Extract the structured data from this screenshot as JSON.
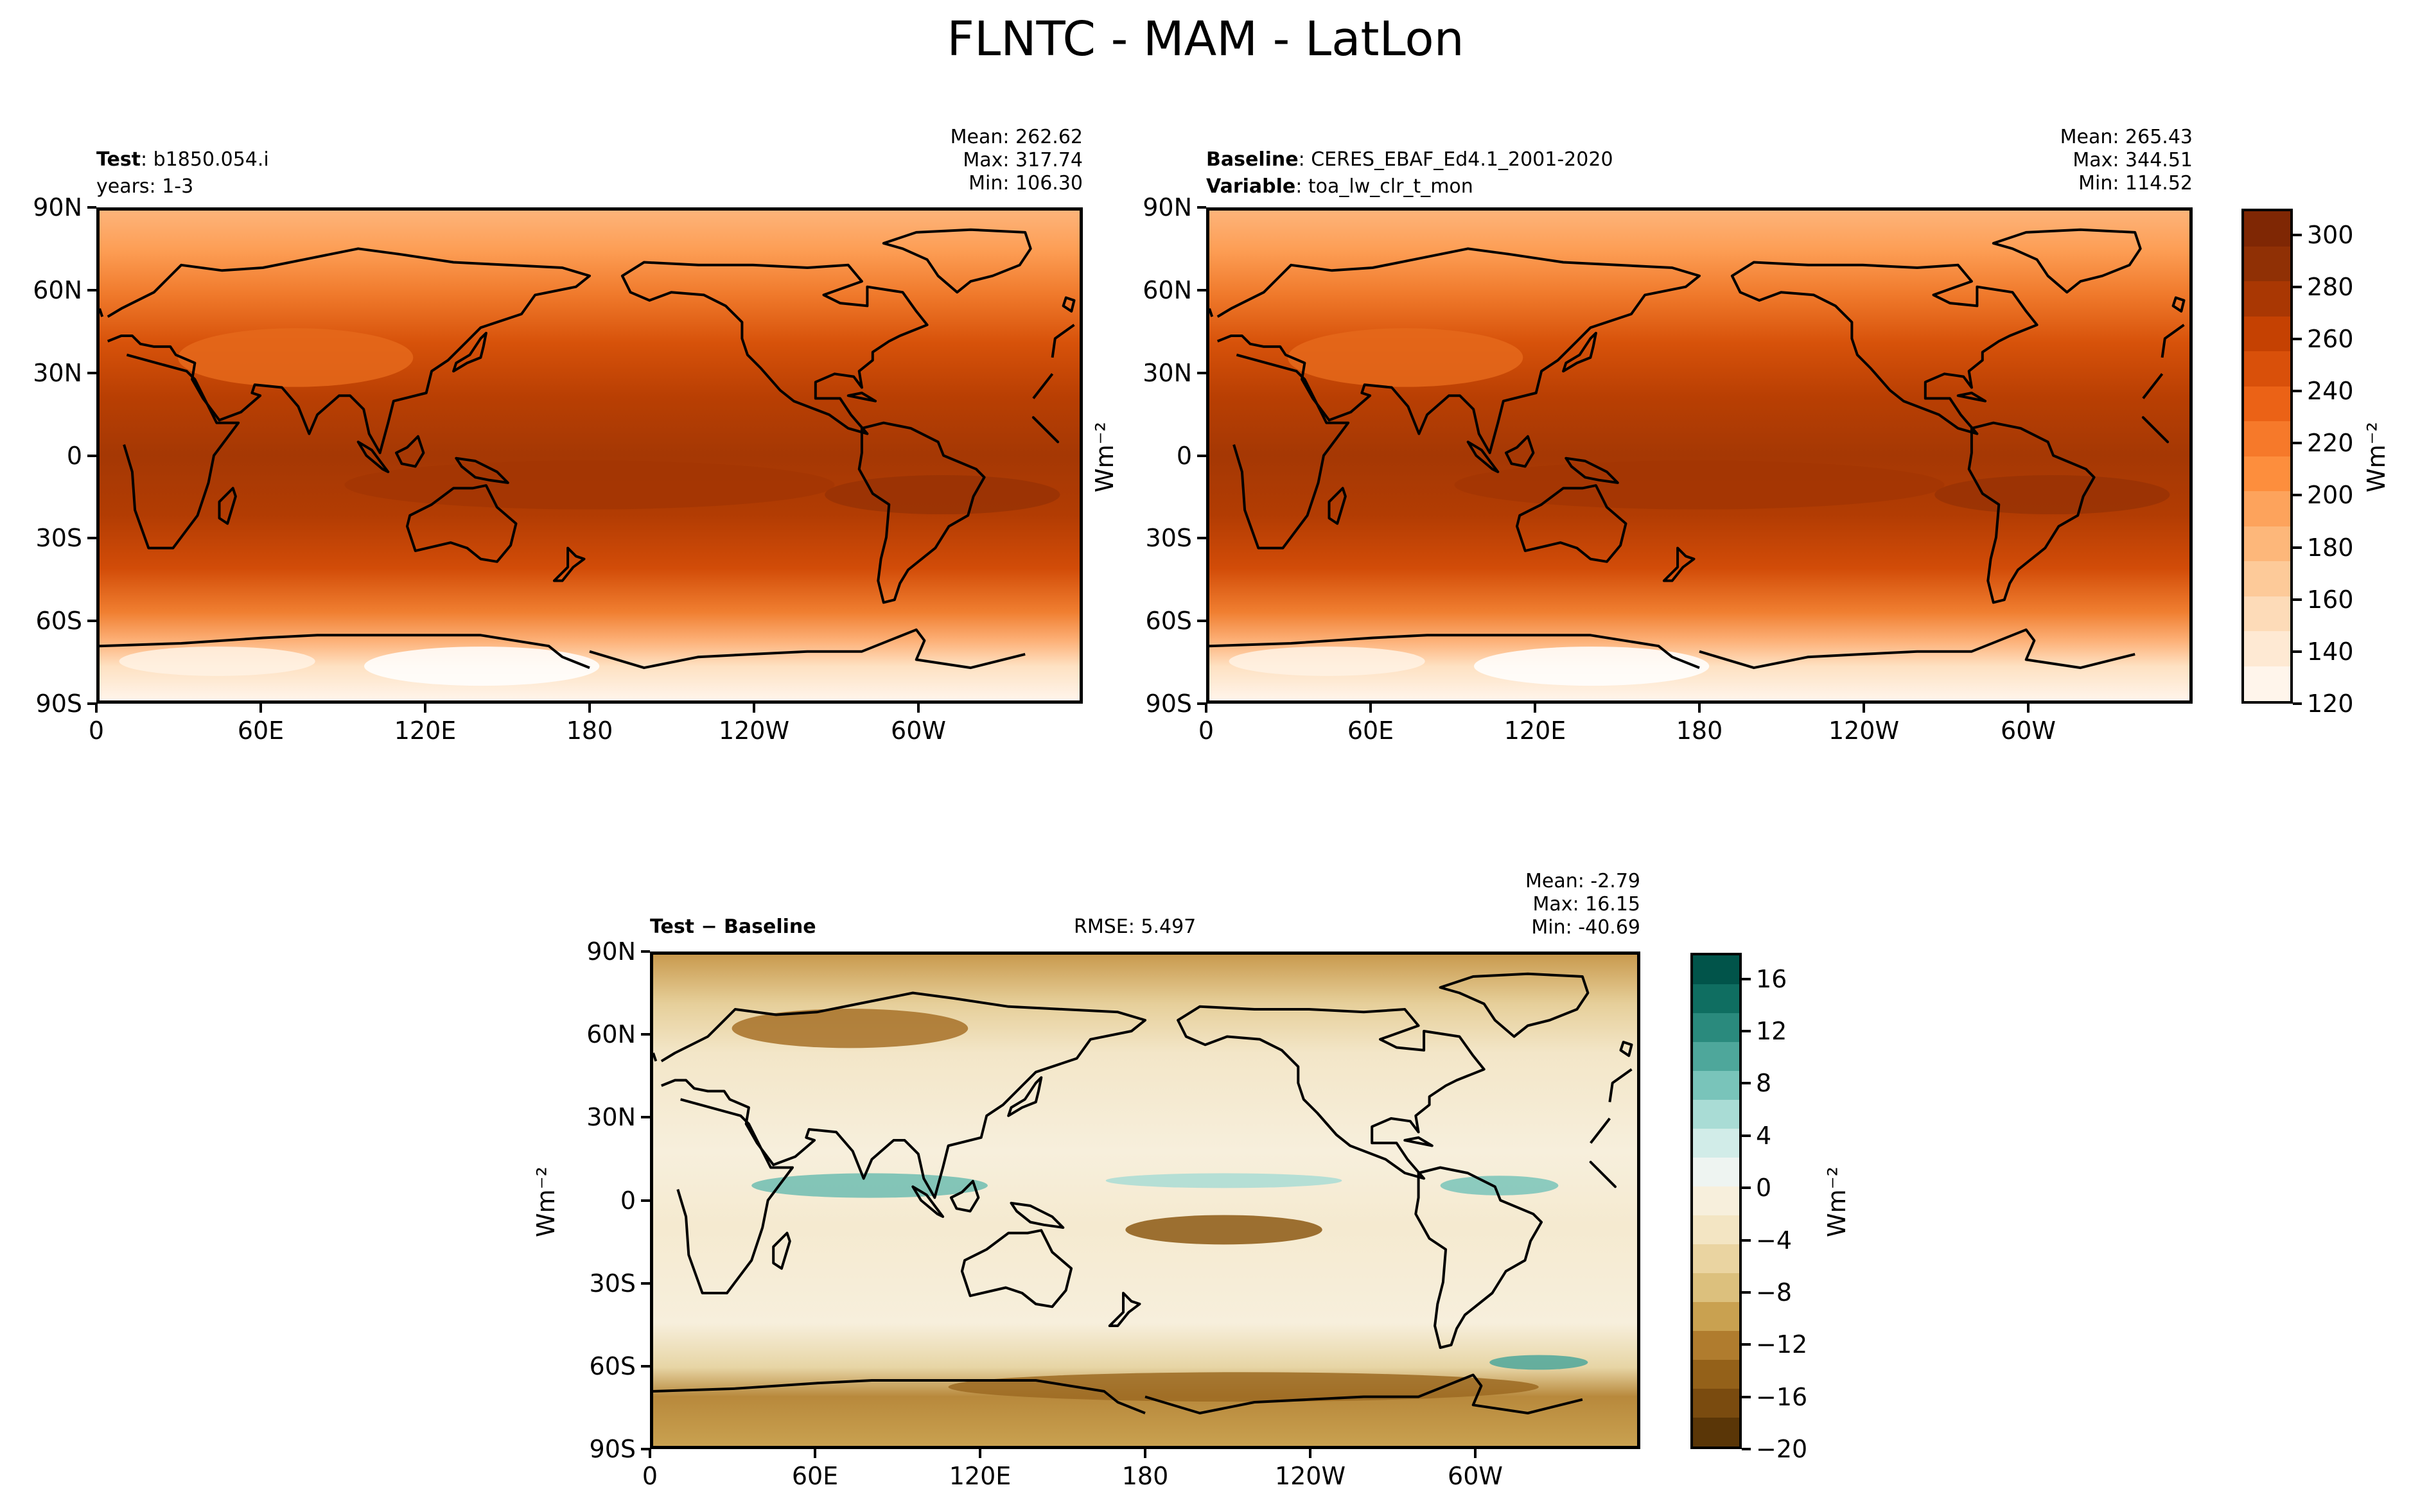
{
  "figure_title": "FLNTC - MAM - LatLon",
  "panels": [
    {
      "header_lines": [
        {
          "bold": "Test",
          "text": ": b1850.054.i"
        },
        {
          "bold": "",
          "text": "years: 1-3"
        }
      ],
      "stats": [
        "Mean: 262.62",
        "Max: 317.74",
        "Min: 106.30"
      ],
      "rmse": ""
    },
    {
      "header_lines": [
        {
          "bold": "Baseline",
          "text": ": CERES_EBAF_Ed4.1_2001-2020"
        },
        {
          "bold": "Variable",
          "text": ": toa_lw_clr_t_mon"
        }
      ],
      "stats": [
        "Mean: 265.43",
        "Max: 344.51",
        "Min: 114.52"
      ],
      "rmse": ""
    },
    {
      "header_lines": [
        {
          "bold": "Test − Baseline",
          "text": ""
        }
      ],
      "stats": [
        "Mean: -2.79",
        "Max: 16.15",
        "Min: -40.69"
      ],
      "rmse": "RMSE: 5.497"
    }
  ],
  "lat_ticks": [
    "90N",
    "60N",
    "30N",
    "0",
    "30S",
    "60S",
    "90S"
  ],
  "lon_ticks": [
    "0",
    "60E",
    "120E",
    "180",
    "120W",
    "60W"
  ],
  "units_label": "Wm⁻²",
  "colorbar_top": {
    "ticks": [
      "300",
      "280",
      "260",
      "240",
      "220",
      "200",
      "180",
      "160",
      "140",
      "120"
    ],
    "levels": [
      120,
      310
    ],
    "colors": [
      "#fff5eb",
      "#fee9d3",
      "#fddbb8",
      "#fdca99",
      "#fdb77a",
      "#fda35c",
      "#fd8e3d",
      "#f6792a",
      "#eb6216",
      "#d9500a",
      "#c54102",
      "#a93703",
      "#903005",
      "#7f2704"
    ]
  },
  "colorbar_diff": {
    "ticks": [
      "16",
      "12",
      "8",
      "4",
      "0",
      "−4",
      "−8",
      "−12",
      "−16",
      "−20"
    ],
    "levels": [
      -20,
      18
    ],
    "colors": [
      "#5a3607",
      "#7a4b0f",
      "#946119",
      "#b07c2e",
      "#c9a150",
      "#dcc07d",
      "#ead4a1",
      "#f3e5c3",
      "#f7efdc",
      "#eef4f1",
      "#d1ece8",
      "#a9dcd5",
      "#79c4ba",
      "#4ea79b",
      "#2a8a7d",
      "#0f6e61",
      "#01544a"
    ]
  }
}
